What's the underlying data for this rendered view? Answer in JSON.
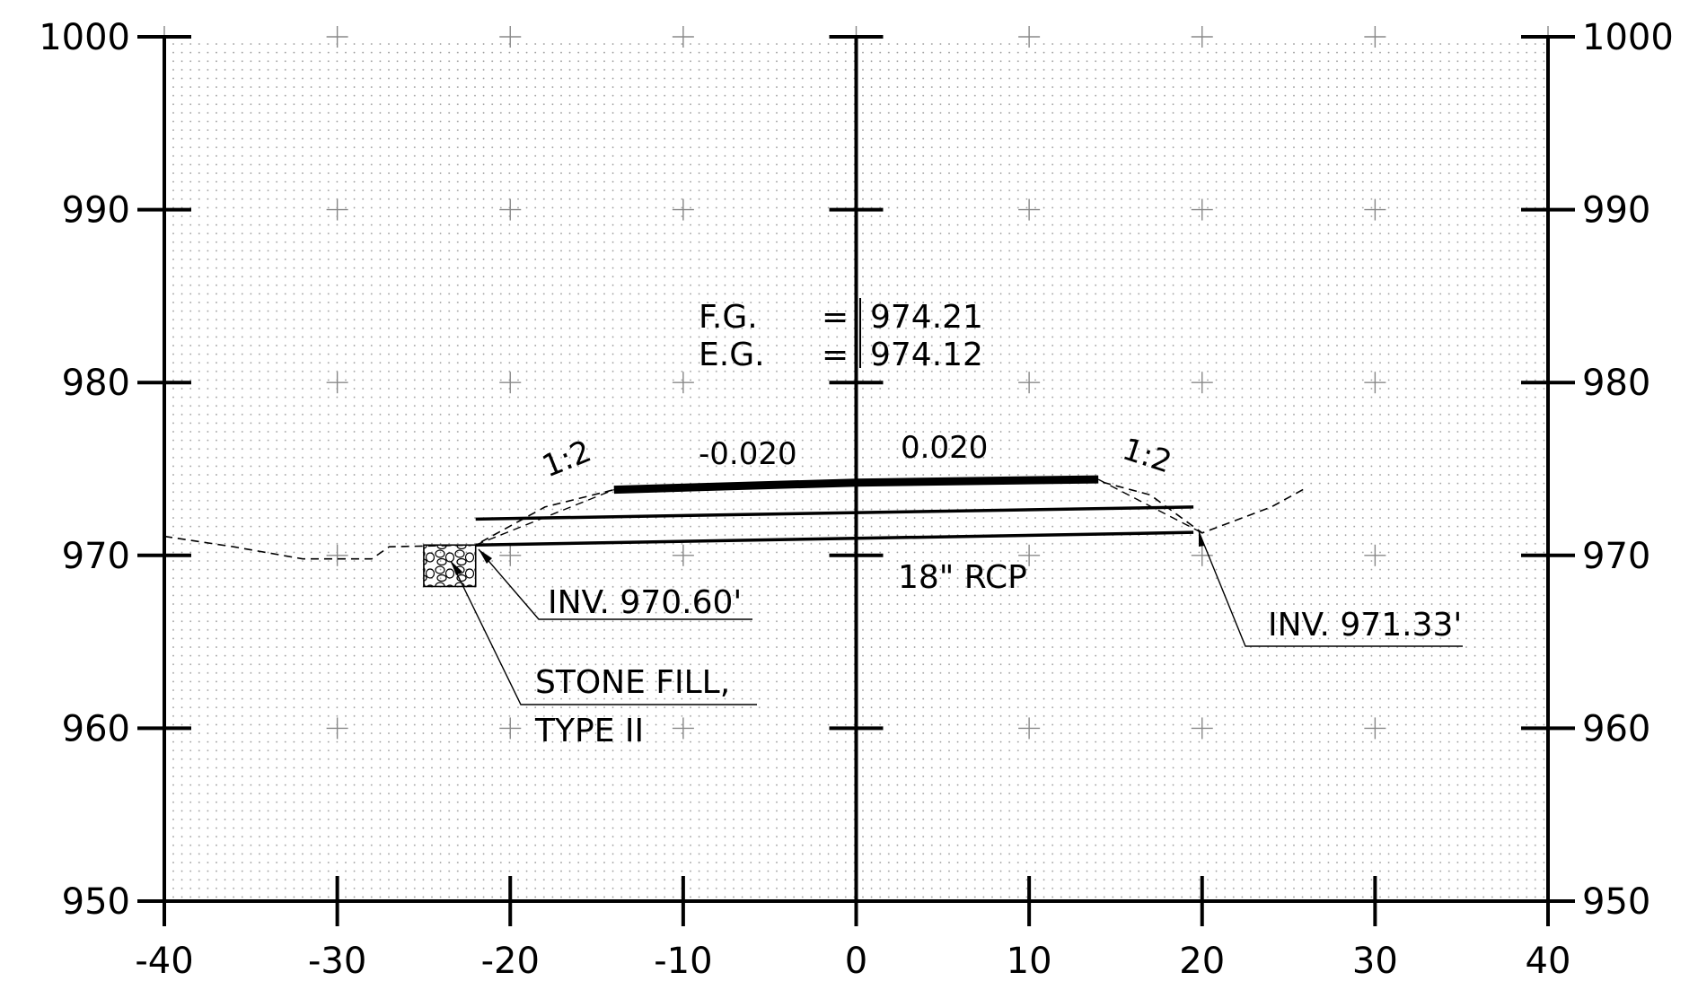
{
  "chart_data": {
    "type": "cross-section",
    "x_ticks": [
      -40,
      -30,
      -20,
      -10,
      0,
      10,
      20,
      30,
      40
    ],
    "y_ticks": [
      950,
      960,
      970,
      980,
      990,
      1000
    ],
    "x_range": [
      -40,
      40
    ],
    "y_range": [
      950,
      1000
    ],
    "grid": "dotted",
    "existing_ground": [
      [
        -40,
        971.1
      ],
      [
        -36,
        970.5
      ],
      [
        -32,
        969.8
      ],
      [
        -28,
        969.8
      ],
      [
        -27,
        970.5
      ],
      [
        -22,
        970.6
      ],
      [
        -18,
        972.8
      ],
      [
        -14,
        973.8
      ],
      [
        -2,
        974.12
      ],
      [
        14,
        974.3
      ],
      [
        17,
        973.5
      ],
      [
        20,
        971.3
      ],
      [
        24,
        972.8
      ],
      [
        26,
        973.9
      ]
    ],
    "finished_grade": [
      [
        -14,
        973.8
      ],
      [
        0,
        974.21
      ],
      [
        14,
        974.4
      ]
    ],
    "slopes_left": [
      [
        -22,
        970.6
      ],
      [
        -14,
        973.8
      ]
    ],
    "slopes_right": [
      [
        14,
        974.4
      ],
      [
        20,
        971.3
      ]
    ],
    "pipe": {
      "top": [
        [
          -22,
          972.1
        ],
        [
          19.5,
          972.8
        ]
      ],
      "bottom": [
        [
          -22,
          970.6
        ],
        [
          19.5,
          971.33
        ]
      ]
    },
    "stone_fill": {
      "x": [
        -25,
        -22
      ],
      "y": [
        968.2,
        970.6
      ]
    },
    "slope_labels": {
      "left_side": "1:2",
      "right_side": "1:2",
      "left_cross": "-0.020",
      "right_cross": "0.020"
    },
    "annotations": {
      "fg_label": "F.G.",
      "fg_value": "974.21",
      "eg_label": "E.G.",
      "eg_value": "974.12",
      "eq_sign": "=",
      "pipe_label": "18\" RCP",
      "inv_left": "INV. 970.60'",
      "inv_right": "INV. 971.33'",
      "stone_line1": "STONE FILL,",
      "stone_line2": "TYPE II"
    }
  }
}
